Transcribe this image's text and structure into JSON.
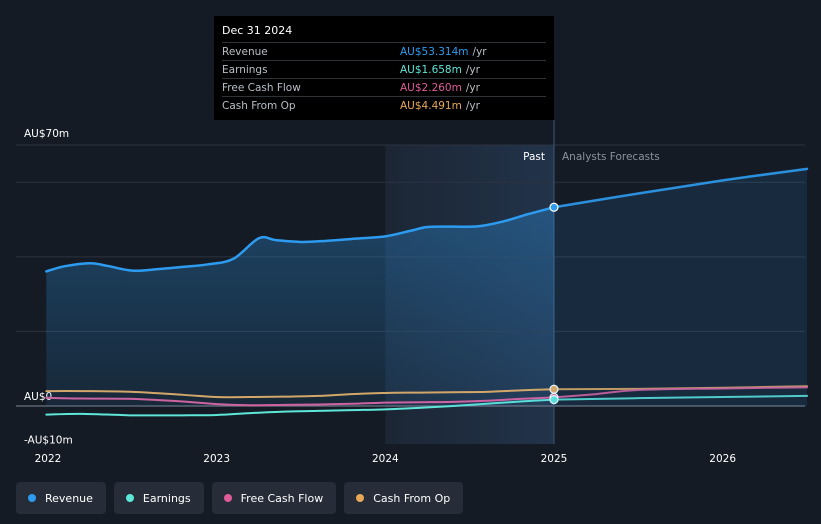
{
  "tooltip": {
    "date": "Dec 31 2024",
    "rows": [
      {
        "label": "Revenue",
        "value": "AU$53.314m",
        "unit": "/yr",
        "color": "#2d9cf0"
      },
      {
        "label": "Earnings",
        "value": "AU$1.658m",
        "unit": "/yr",
        "color": "#5ee6d8"
      },
      {
        "label": "Free Cash Flow",
        "value": "AU$2.260m",
        "unit": "/yr",
        "color": "#e05c98"
      },
      {
        "label": "Cash From Op",
        "value": "AU$4.491m",
        "unit": "/yr",
        "color": "#e8a858"
      }
    ]
  },
  "chart_data": {
    "type": "line",
    "title": "",
    "y_unit": "AU$m",
    "ylim": [
      -10,
      70
    ],
    "xlim": [
      2021.9,
      2026.5
    ],
    "y_tick_labels": [
      {
        "value": 70,
        "label": "AU$70m"
      },
      {
        "value": 0,
        "label": "AU$0"
      },
      {
        "value": -10,
        "label": "-AU$10m"
      }
    ],
    "x_tick_labels": [
      {
        "value": 2022,
        "label": "2022"
      },
      {
        "value": 2023,
        "label": "2023"
      },
      {
        "value": 2024,
        "label": "2024"
      },
      {
        "value": 2025,
        "label": "2025"
      },
      {
        "value": 2026,
        "label": "2026"
      }
    ],
    "gridlines_y": [
      70,
      60,
      40,
      20,
      0
    ],
    "past_label": "Past",
    "forecast_label": "Analysts Forecasts",
    "divider_x": 2025.0,
    "highlight_start_x": 2024.0,
    "series": [
      {
        "name": "Revenue",
        "color": "#2d9cf0",
        "area": true,
        "width": 2.5,
        "x": [
          2021.99,
          2022.1,
          2022.25,
          2022.35,
          2022.5,
          2022.65,
          2022.8,
          2022.95,
          2023.1,
          2023.25,
          2023.35,
          2023.5,
          2023.65,
          2023.8,
          2024.0,
          2024.15,
          2024.25,
          2024.4,
          2024.55,
          2024.7,
          2024.85,
          2025.0
        ],
        "y": [
          36.1,
          37.5,
          38.3,
          37.6,
          36.3,
          36.7,
          37.3,
          38.0,
          39.5,
          45.0,
          44.5,
          44.0,
          44.3,
          44.8,
          45.5,
          47.0,
          48.0,
          48.1,
          48.2,
          49.5,
          51.5,
          53.3
        ],
        "forecast_x": [
          2025.0,
          2025.5,
          2026.0,
          2026.5
        ],
        "forecast_y": [
          53.3,
          57.0,
          60.5,
          63.6
        ]
      },
      {
        "name": "Earnings",
        "color": "#5ee6d8",
        "area": false,
        "width": 2,
        "x": [
          2021.99,
          2022.2,
          2022.5,
          2022.8,
          2023.0,
          2023.2,
          2023.4,
          2023.6,
          2023.8,
          2024.0,
          2024.2,
          2024.4,
          2024.6,
          2024.8,
          2025.0
        ],
        "y": [
          -2.3,
          -2.1,
          -2.5,
          -2.5,
          -2.4,
          -1.9,
          -1.5,
          -1.3,
          -1.1,
          -0.9,
          -0.5,
          0.0,
          0.6,
          1.2,
          1.7
        ],
        "forecast_x": [
          2025.0,
          2025.5,
          2026.0,
          2026.5
        ],
        "forecast_y": [
          1.7,
          2.1,
          2.4,
          2.7
        ]
      },
      {
        "name": "Free Cash Flow",
        "color": "#e05c98",
        "area": false,
        "width": 2,
        "x": [
          2021.99,
          2022.2,
          2022.5,
          2022.8,
          2023.0,
          2023.2,
          2023.4,
          2023.6,
          2023.8,
          2024.0,
          2024.2,
          2024.4,
          2024.6,
          2024.8,
          2025.0
        ],
        "y": [
          2.2,
          2.0,
          1.9,
          1.2,
          0.5,
          0.2,
          0.3,
          0.4,
          0.6,
          0.9,
          1.0,
          1.1,
          1.4,
          1.9,
          2.3
        ],
        "forecast_x": [
          2025.0,
          2025.25,
          2025.5,
          2026.0,
          2026.5
        ],
        "forecast_y": [
          2.3,
          3.2,
          4.3,
          4.7,
          5.0
        ]
      },
      {
        "name": "Cash From Op",
        "color": "#e8a858",
        "area": false,
        "width": 2,
        "x": [
          2021.99,
          2022.2,
          2022.5,
          2022.8,
          2023.0,
          2023.2,
          2023.4,
          2023.6,
          2023.8,
          2024.0,
          2024.2,
          2024.4,
          2024.6,
          2024.8,
          2025.0
        ],
        "y": [
          4.0,
          4.0,
          3.8,
          3.0,
          2.4,
          2.4,
          2.5,
          2.7,
          3.2,
          3.5,
          3.6,
          3.7,
          3.8,
          4.2,
          4.5
        ],
        "forecast_x": [
          2025.0,
          2025.5,
          2026.0,
          2026.5
        ],
        "forecast_y": [
          4.5,
          4.6,
          4.9,
          5.3
        ]
      }
    ]
  },
  "legend": [
    {
      "label": "Revenue",
      "color": "#2d9cf0"
    },
    {
      "label": "Earnings",
      "color": "#5ee6d8"
    },
    {
      "label": "Free Cash Flow",
      "color": "#e05c98"
    },
    {
      "label": "Cash From Op",
      "color": "#e8a858"
    }
  ]
}
